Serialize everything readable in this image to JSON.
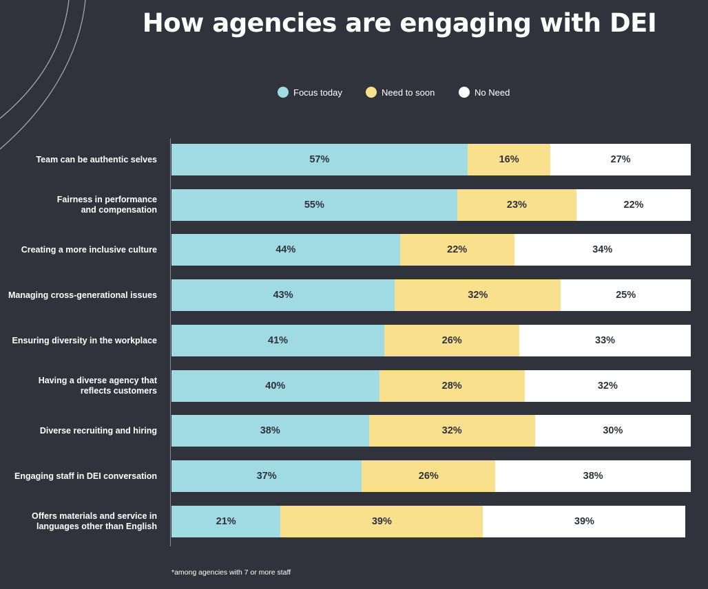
{
  "chart_data": {
    "type": "bar",
    "orientation": "horizontal",
    "stacked": true,
    "title": "How agencies are engaging with DEI",
    "xlim": [
      0,
      100
    ],
    "categories": [
      "Team can be authentic selves",
      "Fairness in performance\nand compensation",
      "Creating a more inclusive culture",
      "Managing cross-generational issues",
      "Ensuring diversity in the workplace",
      "Having a diverse agency that\nreflects customers",
      "Diverse recruiting and hiring",
      "Engaging staff in DEI conversation",
      "Offers materials and service in\nlanguages other than English"
    ],
    "series": [
      {
        "name": "Focus today",
        "color": "#a0dbe4",
        "values": [
          57,
          55,
          44,
          43,
          41,
          40,
          38,
          37,
          21
        ]
      },
      {
        "name": "Need to soon",
        "color": "#f8e08c",
        "values": [
          16,
          23,
          22,
          32,
          26,
          28,
          32,
          26,
          39
        ]
      },
      {
        "name": "No Need",
        "color": "#ffffff",
        "values": [
          27,
          22,
          34,
          25,
          33,
          32,
          30,
          38,
          39
        ]
      }
    ],
    "legend_position": "top-center",
    "grid": false,
    "value_suffix": "%",
    "footnote": "*among agencies with 7 or more staff"
  }
}
